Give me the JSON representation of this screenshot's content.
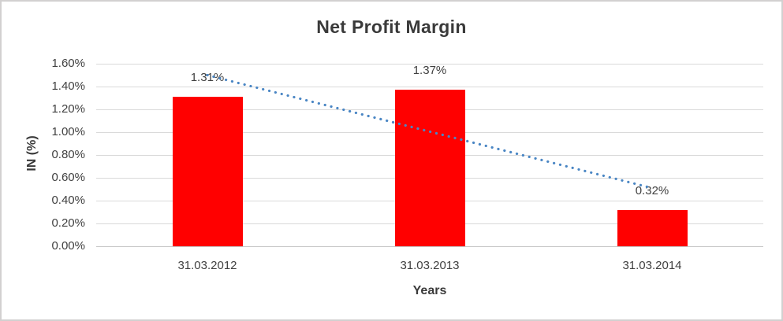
{
  "chart_data": {
    "type": "bar",
    "title": "Net Profit Margin",
    "xlabel": "Years",
    "ylabel": "IN (%)",
    "categories": [
      "31.03.2012",
      "31.03.2013",
      "31.03.2014"
    ],
    "values": [
      1.31,
      1.37,
      0.32
    ],
    "data_labels": [
      "1.31%",
      "1.37%",
      "0.32%"
    ],
    "ylim": [
      0,
      1.6
    ],
    "yticks": [
      {
        "value": 0.0,
        "label": "0.00%"
      },
      {
        "value": 0.2,
        "label": "0.20%"
      },
      {
        "value": 0.4,
        "label": "0.40%"
      },
      {
        "value": 0.6,
        "label": "0.60%"
      },
      {
        "value": 0.8,
        "label": "0.80%"
      },
      {
        "value": 1.0,
        "label": "1.00%"
      },
      {
        "value": 1.2,
        "label": "1.20%"
      },
      {
        "value": 1.4,
        "label": "1.40%"
      },
      {
        "value": 1.6,
        "label": "1.60%"
      }
    ],
    "grid": "horizontal",
    "legend": "none",
    "bar_color": "#FF0000",
    "trendline": {
      "type": "linear",
      "style": "dotted",
      "color": "#4A86C4",
      "start_value": 1.5,
      "end_value": 0.51
    }
  },
  "style_colors": {
    "background": "#FFFFFF",
    "frame_border": "#D2D0D0",
    "gridline": "#D9D9D9",
    "axis_line": "#C6C6C6",
    "text": "#404040",
    "title_text": "#3A3A3A"
  }
}
